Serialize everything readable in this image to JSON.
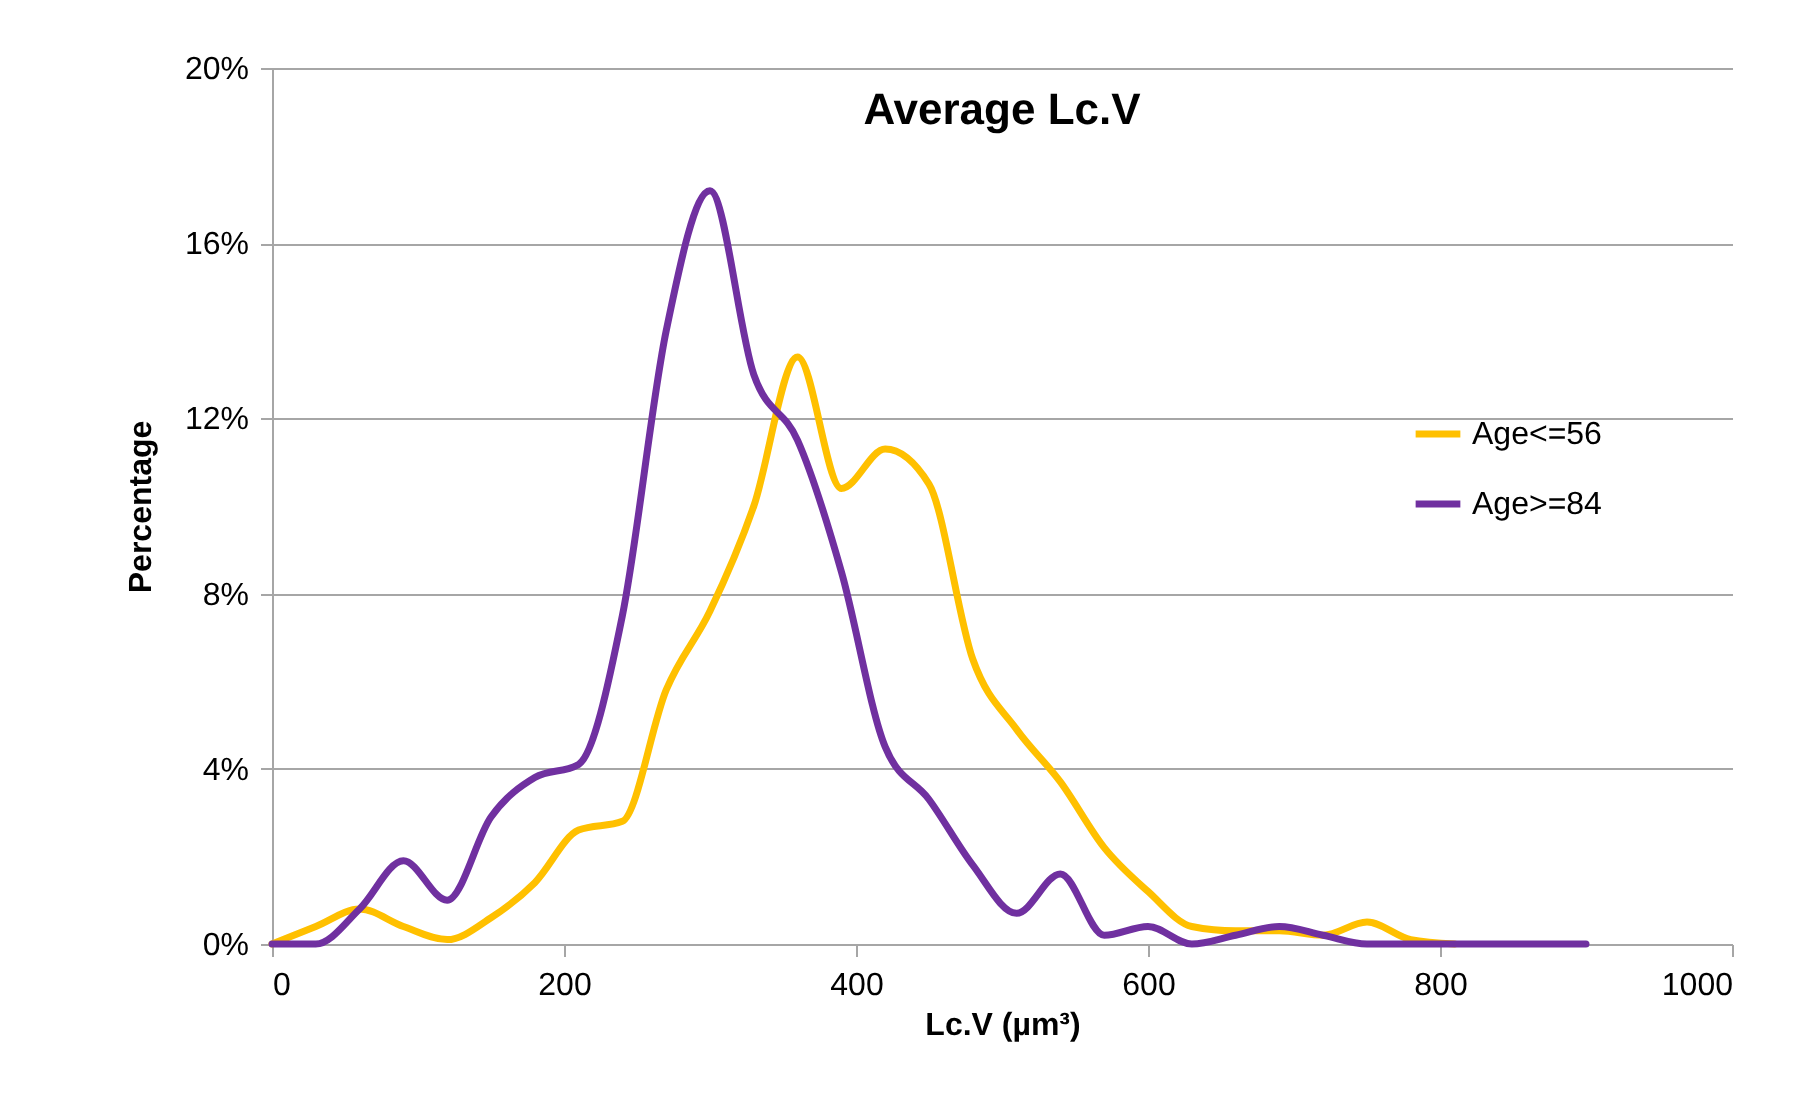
{
  "chart_data": {
    "type": "line",
    "title": "Average Lc.V",
    "xlabel": "Lc.V (µm³)",
    "ylabel": "Percentage",
    "xlim": [
      0,
      1000
    ],
    "xticks": [
      0,
      200,
      400,
      600,
      800,
      1000
    ],
    "ylim": [
      0,
      20
    ],
    "yticks": [
      {
        "value": 0,
        "label": "0%"
      },
      {
        "value": 4,
        "label": "4%"
      },
      {
        "value": 8,
        "label": "8%"
      },
      {
        "value": 12,
        "label": "12%"
      },
      {
        "value": 16,
        "label": "16%"
      },
      {
        "value": 20,
        "label": "20%"
      }
    ],
    "grid": "y",
    "legend": "right",
    "marker": "none",
    "line_style": "solid",
    "series": [
      {
        "name": "Age<=56",
        "color": "#ffc000",
        "x": [
          0,
          30,
          60,
          90,
          120,
          150,
          180,
          210,
          240,
          270,
          300,
          330,
          360,
          390,
          420,
          450,
          480,
          510,
          540,
          570,
          600,
          630,
          660,
          690,
          720,
          750,
          780,
          810
        ],
        "values": [
          0,
          0.4,
          0.8,
          0.4,
          0.1,
          0.6,
          1.4,
          2.6,
          2.8,
          5.8,
          7.6,
          10.0,
          13.4,
          10.4,
          11.3,
          10.5,
          6.5,
          4.9,
          3.7,
          2.2,
          1.2,
          0.4,
          0.3,
          0.3,
          0.2,
          0.5,
          0.1,
          0
        ]
      },
      {
        "name": "Age>=84",
        "color": "#7030a0",
        "x": [
          0,
          30,
          60,
          90,
          120,
          150,
          180,
          210,
          240,
          270,
          300,
          330,
          360,
          390,
          420,
          450,
          480,
          510,
          540,
          570,
          600,
          630,
          660,
          690,
          720,
          750,
          780,
          810,
          840,
          870,
          900
        ],
        "values": [
          0,
          0,
          0.8,
          1.9,
          1.0,
          2.9,
          3.8,
          4.1,
          7.5,
          14.0,
          17.2,
          13.0,
          11.5,
          8.5,
          4.5,
          3.3,
          1.8,
          0.7,
          1.6,
          0.2,
          0.4,
          0,
          0.2,
          0.4,
          0.2,
          0,
          0,
          0,
          0,
          0,
          0
        ]
      }
    ]
  }
}
